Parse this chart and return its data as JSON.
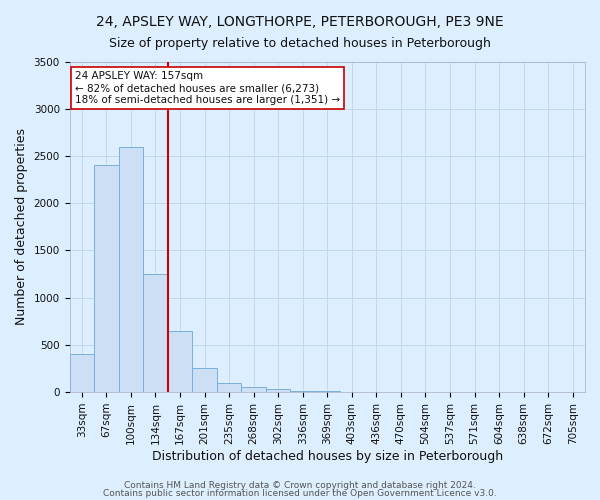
{
  "title": "24, APSLEY WAY, LONGTHORPE, PETERBOROUGH, PE3 9NE",
  "subtitle": "Size of property relative to detached houses in Peterborough",
  "xlabel": "Distribution of detached houses by size in Peterborough",
  "ylabel": "Number of detached properties",
  "bar_labels": [
    "33sqm",
    "67sqm",
    "100sqm",
    "134sqm",
    "167sqm",
    "201sqm",
    "235sqm",
    "268sqm",
    "302sqm",
    "336sqm",
    "369sqm",
    "403sqm",
    "436sqm",
    "470sqm",
    "504sqm",
    "537sqm",
    "571sqm",
    "604sqm",
    "638sqm",
    "672sqm",
    "705sqm"
  ],
  "bar_values": [
    400,
    2400,
    2600,
    1250,
    650,
    260,
    100,
    55,
    30,
    15,
    8,
    4,
    2,
    1,
    1,
    0,
    0,
    0,
    0,
    0,
    0
  ],
  "bar_color": "#ccdff5",
  "bar_edge_color": "#7ab0d8",
  "property_line_color": "#cc0000",
  "annotation_title": "24 APSLEY WAY: 157sqm",
  "annotation_line1": "← 82% of detached houses are smaller (6,273)",
  "annotation_line2": "18% of semi-detached houses are larger (1,351) →",
  "annotation_box_color": "#ffffff",
  "annotation_box_edge": "#cc0000",
  "grid_color": "#c0d8f0",
  "background_color": "#ddeeff",
  "plot_bg_color": "#ddeeff",
  "footer1": "Contains HM Land Registry data © Crown copyright and database right 2024.",
  "footer2": "Contains public sector information licensed under the Open Government Licence v3.0.",
  "ylim": [
    0,
    3500
  ],
  "title_fontsize": 10,
  "subtitle_fontsize": 9,
  "axis_label_fontsize": 9,
  "tick_fontsize": 7.5,
  "footer_fontsize": 6.5
}
